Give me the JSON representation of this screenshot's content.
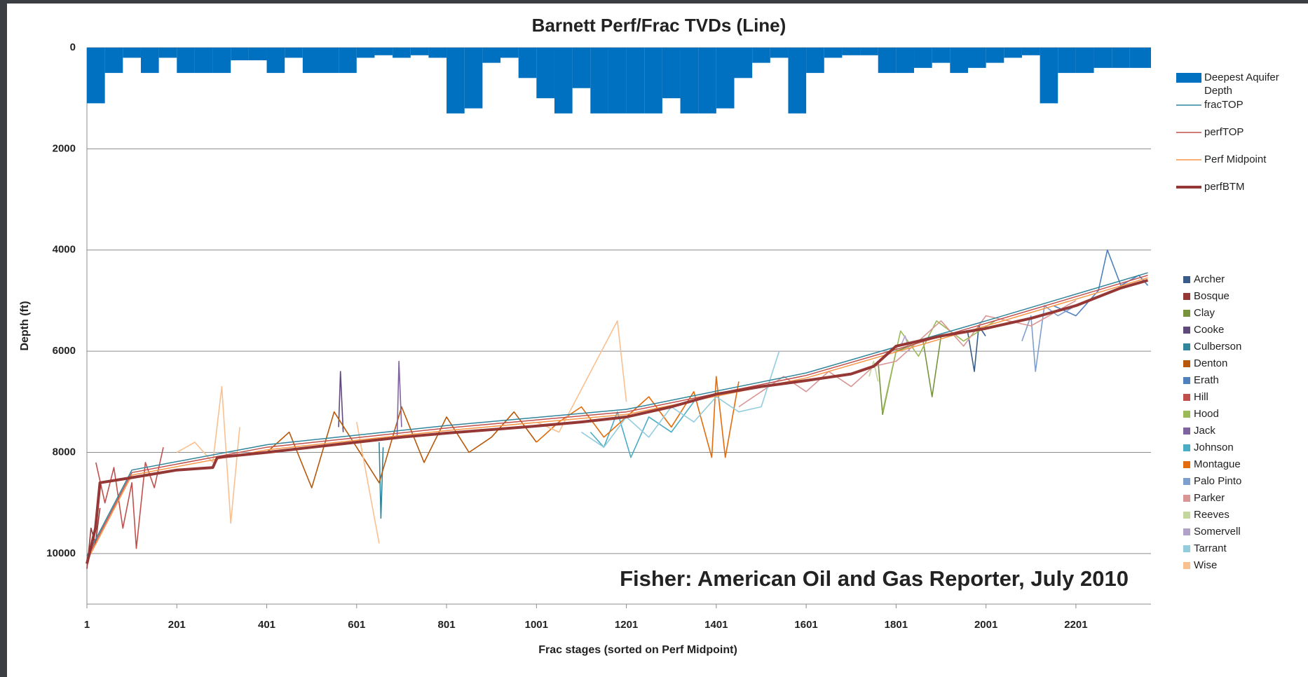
{
  "chart_data": {
    "type": "line",
    "title": "Barnett Perf/Frac TVDs (Line)",
    "x_label": "Frac stages (sorted on Perf Midpoint)",
    "y_label": "Depth (ft)",
    "annotation": "Fisher: American Oil and Gas Reporter, July 2010",
    "xlim": [
      1,
      2368
    ],
    "xticks": [
      1,
      201,
      401,
      601,
      801,
      1001,
      1201,
      1401,
      1601,
      1801,
      2001,
      2201
    ],
    "ylim": [
      0,
      11000
    ],
    "yticks": [
      0,
      2000,
      4000,
      6000,
      8000,
      10000
    ],
    "y_inverted": true,
    "grid": true,
    "series": [
      {
        "name": "Deepest Aquifer Depth",
        "color": "#0070c0",
        "kind": "area",
        "x": [
          1,
          41,
          81,
          121,
          161,
          201,
          241,
          281,
          321,
          361,
          401,
          441,
          481,
          521,
          561,
          601,
          641,
          681,
          721,
          761,
          801,
          841,
          881,
          921,
          961,
          1001,
          1041,
          1081,
          1121,
          1161,
          1201,
          1241,
          1281,
          1321,
          1361,
          1401,
          1441,
          1481,
          1521,
          1561,
          1601,
          1641,
          1681,
          1721,
          1761,
          1801,
          1841,
          1881,
          1921,
          1961,
          2001,
          2041,
          2081,
          2121,
          2161,
          2201,
          2241,
          2281,
          2321,
          2361
        ],
        "values": [
          1100,
          500,
          200,
          500,
          200,
          500,
          500,
          500,
          250,
          250,
          500,
          200,
          500,
          500,
          500,
          200,
          150,
          200,
          150,
          200,
          1300,
          1200,
          300,
          200,
          600,
          1000,
          1300,
          800,
          1300,
          1300,
          1300,
          1300,
          1000,
          1300,
          1300,
          1200,
          600,
          300,
          200,
          1300,
          500,
          200,
          150,
          150,
          500,
          500,
          400,
          300,
          500,
          400,
          300,
          200,
          150,
          1100,
          500,
          500,
          400,
          400,
          400,
          400
        ]
      },
      {
        "name": "fracTOP",
        "color": "#31849b",
        "kind": "line",
        "x": [
          1,
          101,
          401,
          801,
          1201,
          1601,
          2001,
          2361
        ],
        "values": [
          10050,
          8350,
          7850,
          7470,
          7150,
          6430,
          5400,
          4450
        ]
      },
      {
        "name": "perfTOP",
        "color": "#c0504d",
        "kind": "line",
        "x": [
          1,
          101,
          401,
          801,
          1201,
          1601,
          2001,
          2361
        ],
        "values": [
          10100,
          8400,
          7900,
          7520,
          7200,
          6480,
          5450,
          4500
        ]
      },
      {
        "name": "Perf Midpoint",
        "color": "#f79646",
        "kind": "line",
        "x": [
          1,
          101,
          401,
          801,
          1201,
          1601,
          2001,
          2361
        ],
        "values": [
          10150,
          8450,
          7950,
          7570,
          7250,
          6530,
          5500,
          4550
        ]
      },
      {
        "name": "perfBTM",
        "color": "#953735",
        "kind": "thick",
        "x": [
          1,
          20,
          30,
          101,
          201,
          281,
          291,
          401,
          501,
          601,
          701,
          801,
          901,
          1001,
          1101,
          1201,
          1301,
          1401,
          1501,
          1601,
          1701,
          1751,
          1801,
          1901,
          2001,
          2101,
          2201,
          2301,
          2361
        ],
        "values": [
          10200,
          9500,
          8600,
          8500,
          8350,
          8300,
          8100,
          8000,
          7900,
          7800,
          7700,
          7620,
          7550,
          7480,
          7400,
          7300,
          7100,
          6850,
          6700,
          6580,
          6450,
          6300,
          5900,
          5700,
          5550,
          5350,
          5100,
          4750,
          4600
        ]
      }
    ],
    "county_series": [
      {
        "name": "Archer",
        "color": "#385d8a",
        "x": [
          1960,
          1975,
          1985,
          2000
        ],
        "values": [
          5600,
          6400,
          5500,
          5700
        ]
      },
      {
        "name": "Bosque",
        "color": "#953735",
        "x": [
          1,
          10,
          20,
          30
        ],
        "values": [
          10300,
          9500,
          9800,
          9100
        ]
      },
      {
        "name": "Clay",
        "color": "#77933c",
        "x": [
          1761,
          1771,
          1801,
          1861,
          1881,
          1901
        ],
        "values": [
          6200,
          7250,
          6000,
          5800,
          6900,
          5700
        ]
      },
      {
        "name": "Cooke",
        "color": "#604a7b",
        "x": [
          561,
          565,
          571
        ],
        "values": [
          7500,
          6400,
          7600
        ]
      },
      {
        "name": "Culberson",
        "color": "#31859c",
        "x": [
          651,
          655,
          660
        ],
        "values": [
          7800,
          9300,
          7900
        ]
      },
      {
        "name": "Denton",
        "color": "#b8580a",
        "x": [
          401,
          451,
          501,
          551,
          601,
          651,
          701,
          751,
          801,
          851,
          901,
          951,
          1001
        ],
        "values": [
          8000,
          7600,
          8700,
          7200,
          7900,
          8600,
          7100,
          8200,
          7300,
          8000,
          7700,
          7200,
          7800
        ]
      },
      {
        "name": "Erath",
        "color": "#4f81bd",
        "x": [
          2151,
          2201,
          2251,
          2271,
          2301,
          2341,
          2361
        ],
        "values": [
          5100,
          5300,
          4800,
          4000,
          4700,
          4500,
          4700
        ]
      },
      {
        "name": "Hill",
        "color": "#c0504d",
        "x": [
          21,
          41,
          61,
          81,
          101,
          111,
          131,
          151,
          171
        ],
        "values": [
          8200,
          9000,
          8300,
          9500,
          8600,
          9900,
          8200,
          8700,
          7900
        ]
      },
      {
        "name": "Hood",
        "color": "#9bbb59",
        "x": [
          1771,
          1811,
          1851,
          1891,
          1951,
          2021
        ],
        "values": [
          7200,
          5600,
          6100,
          5400,
          5800,
          5400
        ]
      },
      {
        "name": "Jack",
        "color": "#8064a2",
        "x": [
          691,
          695,
          701
        ],
        "values": [
          7700,
          6200,
          7500
        ]
      },
      {
        "name": "Johnson",
        "color": "#4bacc6",
        "x": [
          1121,
          1151,
          1181,
          1211,
          1251,
          1301,
          1351
        ],
        "values": [
          7600,
          7900,
          7200,
          8100,
          7300,
          7600,
          7000
        ]
      },
      {
        "name": "Montague",
        "color": "#e46c0a",
        "x": [
          1001,
          1051,
          1101,
          1151,
          1201,
          1251,
          1301,
          1351,
          1391,
          1401,
          1421,
          1451
        ],
        "values": [
          7800,
          7400,
          7100,
          7700,
          7300,
          6900,
          7500,
          6800,
          8100,
          6500,
          8100,
          6600
        ]
      },
      {
        "name": "Palo Pinto",
        "color": "#7f9fcf",
        "x": [
          2081,
          2101,
          2111,
          2131,
          2161,
          2201
        ],
        "values": [
          5800,
          5300,
          6400,
          5100,
          5300,
          5100
        ]
      },
      {
        "name": "Parker",
        "color": "#d99694",
        "x": [
          1451,
          1501,
          1551,
          1601,
          1651,
          1701,
          1751,
          1801,
          1851,
          1901,
          1951,
          2001,
          2101,
          2201
        ],
        "values": [
          7100,
          6800,
          6500,
          6800,
          6400,
          6700,
          6300,
          6200,
          5800,
          5400,
          5900,
          5300,
          5500,
          5000
        ]
      },
      {
        "name": "Reeves",
        "color": "#c3d69b",
        "x": [
          1741,
          1751,
          1761
        ],
        "values": [
          6500,
          6200,
          6600
        ]
      },
      {
        "name": "Somervell",
        "color": "#b3a2c7",
        "x": [
          1811,
          1821,
          1831
        ],
        "values": [
          5900,
          5700,
          6000
        ]
      },
      {
        "name": "Tarrant",
        "color": "#93cddd",
        "x": [
          1101,
          1151,
          1201,
          1251,
          1301,
          1351,
          1401,
          1451,
          1501,
          1541
        ],
        "values": [
          7600,
          7900,
          7300,
          7700,
          7100,
          7400,
          6900,
          7200,
          7100,
          6000
        ]
      },
      {
        "name": "Wise",
        "color": "#fac090",
        "x": [
          201,
          241,
          281,
          301,
          321,
          341,
          471,
          601,
          651,
          831,
          1001,
          1051,
          1181,
          1201
        ],
        "values": [
          8000,
          7800,
          8200,
          6700,
          9400,
          7500,
          null,
          7400,
          9800,
          null,
          7400,
          7600,
          5400,
          7000
        ]
      }
    ]
  }
}
